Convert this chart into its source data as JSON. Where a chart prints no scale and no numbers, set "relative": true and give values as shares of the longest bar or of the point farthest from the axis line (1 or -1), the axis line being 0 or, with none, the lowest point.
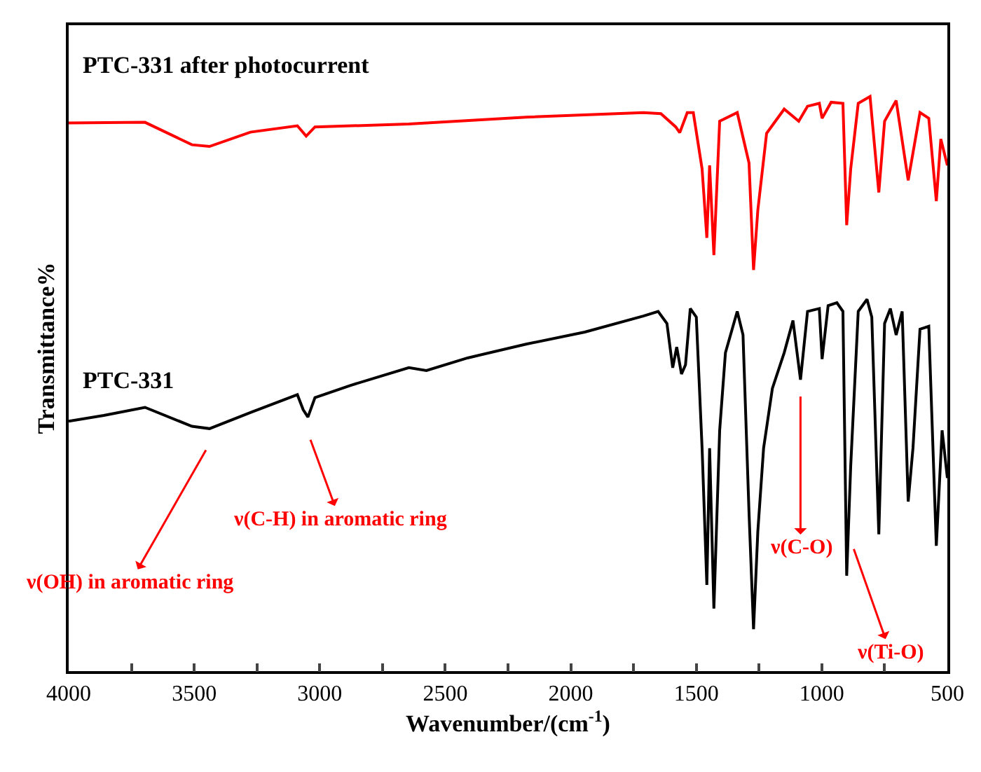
{
  "chart_data": {
    "type": "line",
    "relative": true,
    "xlabel": "Wavenumber/(cm$^{-1}$)",
    "ylabel": "Transmittance%",
    "xlim": [
      4000,
      500
    ],
    "xticks": [
      4000,
      {
        "value": 3750,
        "label": null
      },
      3500,
      {
        "value": 3250,
        "label": null
      },
      3000,
      {
        "value": 2750,
        "label": null
      },
      2500,
      {
        "value": 2250,
        "label": null
      },
      2000,
      {
        "value": 1750,
        "label": null
      },
      1500,
      {
        "value": 1250,
        "label": null
      },
      1000,
      {
        "value": 750,
        "label": null
      },
      500
    ],
    "tick_labels": "x",
    "legend": false,
    "marker": "none",
    "line_style": "solid",
    "series": [
      {
        "name": "PTC-331 after photocurrent",
        "color": "#ff0000",
        "x": [
          4000,
          3696,
          3509,
          3439,
          3276,
          3089,
          3054,
          3019,
          2645,
          2178,
          1711,
          1641,
          1582,
          1566,
          1536,
          1512,
          1477,
          1458,
          1447,
          1430,
          1407,
          1337,
          1290,
          1272,
          1255,
          1220,
          1150,
          1092,
          1057,
          1010,
          999,
          963,
          916,
          901,
          885,
          855,
          808,
          773,
          750,
          704,
          656,
          609,
          574,
          544,
          526,
          500
        ],
        "values": [
          0.954,
          0.955,
          0.916,
          0.913,
          0.938,
          0.949,
          0.931,
          0.947,
          0.952,
          0.964,
          0.972,
          0.97,
          0.947,
          0.937,
          0.972,
          0.972,
          0.874,
          0.754,
          0.88,
          0.724,
          0.957,
          0.972,
          0.884,
          0.698,
          0.802,
          0.936,
          0.978,
          0.957,
          0.983,
          0.988,
          0.962,
          0.99,
          0.988,
          0.776,
          0.874,
          0.988,
          1.0,
          0.833,
          0.957,
          0.993,
          0.854,
          0.972,
          0.962,
          0.818,
          0.926,
          0.88
        ]
      },
      {
        "name": "PTC-331",
        "color": "#000000",
        "x": [
          4000,
          3860,
          3696,
          3509,
          3439,
          3276,
          3089,
          3066,
          3047,
          3019,
          2879,
          2645,
          2575,
          2411,
          2178,
          1944,
          1711,
          1652,
          1617,
          1594,
          1578,
          1559,
          1543,
          1524,
          1500,
          1477,
          1458,
          1447,
          1430,
          1407,
          1384,
          1337,
          1314,
          1290,
          1272,
          1255,
          1232,
          1197,
          1150,
          1115,
          1085,
          1057,
          1010,
          999,
          975,
          940,
          916,
          901,
          885,
          855,
          820,
          801,
          773,
          750,
          727,
          704,
          680,
          656,
          637,
          609,
          574,
          544,
          521,
          500
        ],
        "values": [
          0.435,
          0.445,
          0.459,
          0.426,
          0.422,
          0.45,
          0.481,
          0.455,
          0.442,
          0.476,
          0.497,
          0.528,
          0.523,
          0.545,
          0.569,
          0.59,
          0.618,
          0.626,
          0.605,
          0.528,
          0.564,
          0.517,
          0.533,
          0.631,
          0.616,
          0.388,
          0.15,
          0.388,
          0.109,
          0.419,
          0.554,
          0.626,
          0.585,
          0.275,
          0.073,
          0.243,
          0.388,
          0.492,
          0.554,
          0.61,
          0.507,
          0.626,
          0.631,
          0.543,
          0.636,
          0.641,
          0.626,
          0.166,
          0.357,
          0.626,
          0.647,
          0.616,
          0.238,
          0.605,
          0.631,
          0.585,
          0.626,
          0.295,
          0.388,
          0.595,
          0.6,
          0.218,
          0.419,
          0.336
        ]
      }
    ],
    "annotations": [
      {
        "text": "ν(OH) in aromatic ring",
        "x": 3420,
        "y": 0.41
      },
      {
        "text": "ν(C-H) in aromatic ring",
        "x": 3060,
        "y": 0.43
      },
      {
        "text": "ν(C-O)",
        "x": 1085,
        "y": 0.507
      },
      {
        "text": "ν(Ti-O)",
        "x": 895,
        "y": 0.24
      }
    ]
  }
}
